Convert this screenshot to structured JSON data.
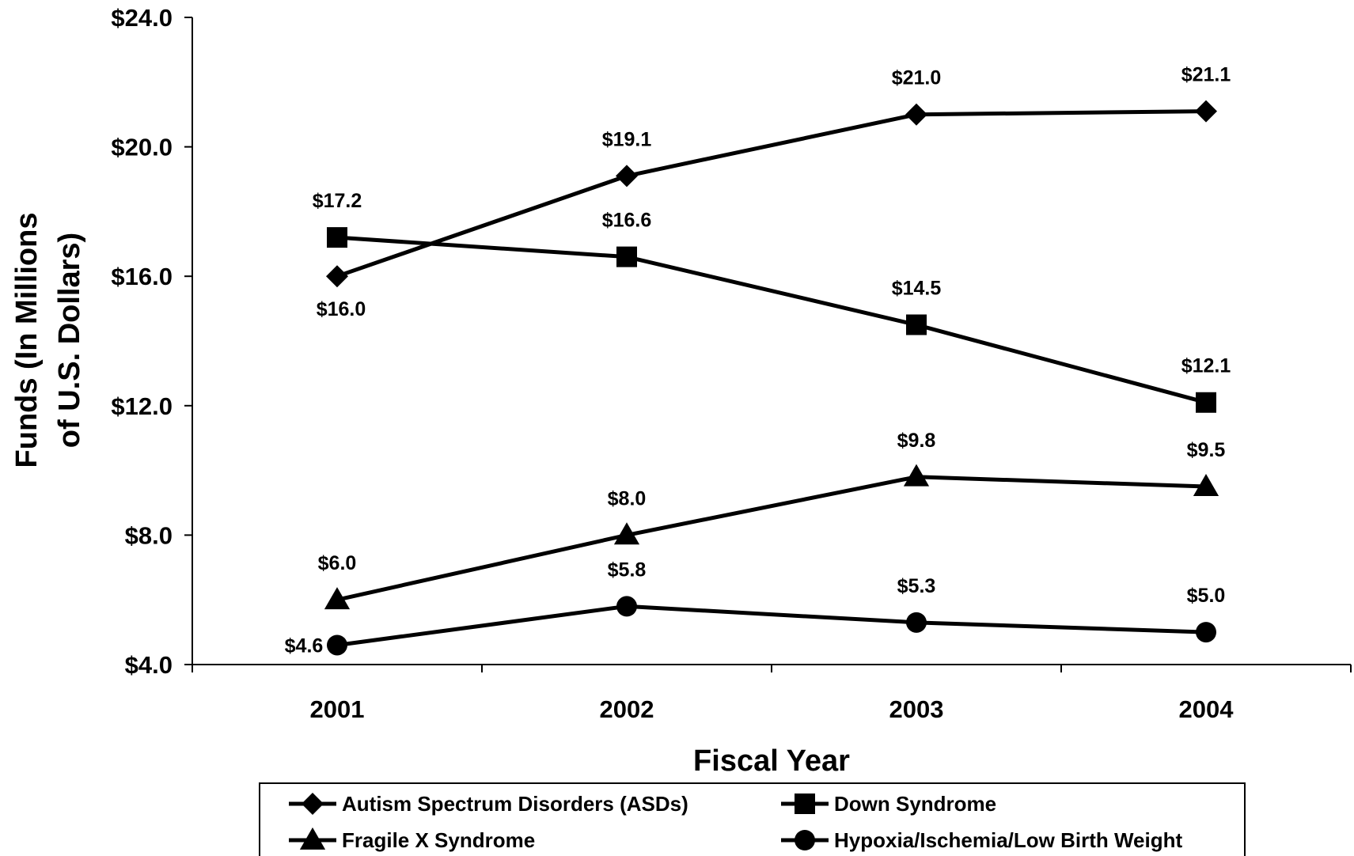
{
  "chart_data": {
    "type": "line",
    "title": "",
    "xlabel": "Fiscal Year",
    "ylabel_line1": "Funds (In Millions",
    "ylabel_line2": "of U.S. Dollars)",
    "categories": [
      "2001",
      "2002",
      "2003",
      "2004"
    ],
    "ylim": [
      4.0,
      24.0
    ],
    "yticks": [
      4.0,
      8.0,
      12.0,
      16.0,
      20.0,
      24.0
    ],
    "ytick_labels": [
      "$4.0",
      "$8.0",
      "$12.0",
      "$16.0",
      "$20.0",
      "$24.0"
    ],
    "grid": false,
    "legend_position": "bottom",
    "series": [
      {
        "name": "Autism Spectrum Disorders (ASDs)",
        "marker": "diamond",
        "values": [
          16.0,
          19.1,
          21.0,
          21.1
        ],
        "labels": [
          "$16.0",
          "$19.1",
          "$21.0",
          "$21.1"
        ]
      },
      {
        "name": "Down Syndrome",
        "marker": "square",
        "values": [
          17.2,
          16.6,
          14.5,
          12.1
        ],
        "labels": [
          "$17.2",
          "$16.6",
          "$14.5",
          "$12.1"
        ]
      },
      {
        "name": "Fragile X Syndrome",
        "marker": "triangle",
        "values": [
          6.0,
          8.0,
          9.8,
          9.5
        ],
        "labels": [
          "$6.0",
          "$8.0",
          "$9.8",
          "$9.5"
        ]
      },
      {
        "name": "Hypoxia/Ischemia/Low Birth Weight",
        "marker": "circle",
        "values": [
          4.6,
          5.8,
          5.3,
          5.0
        ],
        "labels": [
          "$4.6",
          "$5.8",
          "$5.3",
          "$5.0"
        ]
      }
    ],
    "line_color": "#000000"
  }
}
